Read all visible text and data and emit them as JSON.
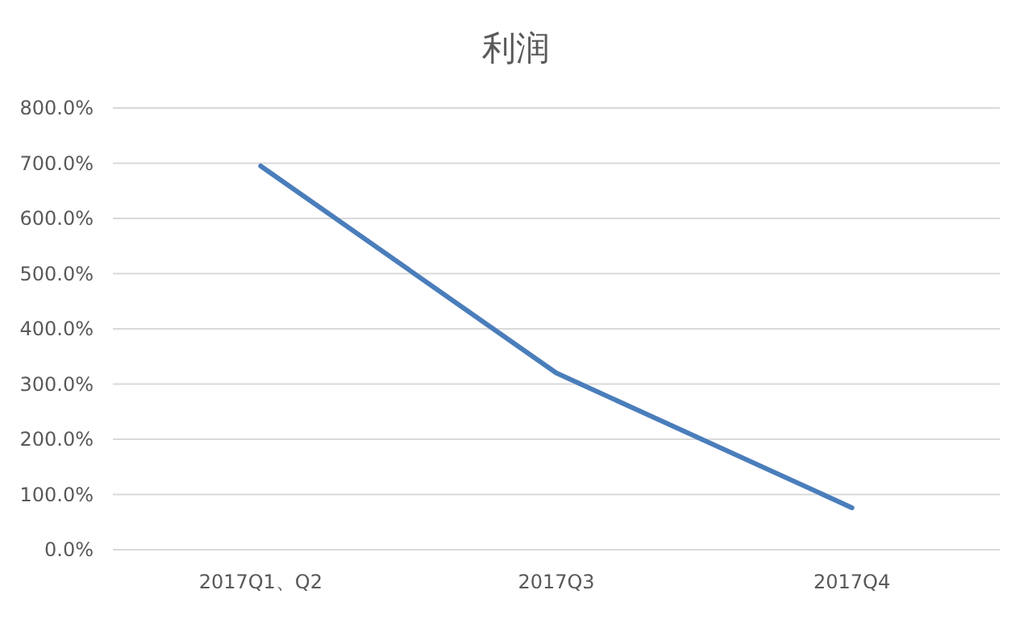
{
  "chart_data": {
    "type": "line",
    "title": "利润",
    "categories": [
      "2017Q1、Q2",
      "2017Q3",
      "2017Q4"
    ],
    "series": [
      {
        "color": "#4a7ebb",
        "values": [
          695,
          320,
          76
        ]
      }
    ],
    "ylim": [
      0,
      800
    ],
    "yticks": [
      {
        "value": 0,
        "label": "0.0%"
      },
      {
        "value": 100,
        "label": "100.0%"
      },
      {
        "value": 200,
        "label": "200.0%"
      },
      {
        "value": 300,
        "label": "300.0%"
      },
      {
        "value": 400,
        "label": "400.0%"
      },
      {
        "value": 500,
        "label": "500.0%"
      },
      {
        "value": 600,
        "label": "600.0%"
      },
      {
        "value": 700,
        "label": "700.0%"
      },
      {
        "value": 800,
        "label": "800.0%"
      }
    ],
    "grid": "y",
    "marker": "none"
  }
}
